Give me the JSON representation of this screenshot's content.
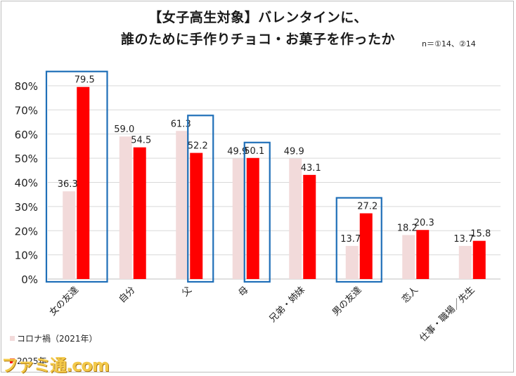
{
  "header": {
    "title_line1": "【女子高生対象】バレンタインに、",
    "title_line2": "誰のために手作りチョコ・お菓子を作ったか",
    "note": "n＝①14、②14"
  },
  "legend": {
    "items": [
      {
        "label": "コロナ禍（2021年）",
        "color": "#f2dada"
      },
      {
        "label": "2025年",
        "color": "#ff0000"
      }
    ]
  },
  "watermark": {
    "text": "ファミ通.com"
  },
  "chart_data": {
    "type": "bar",
    "categories": [
      "女の友達",
      "自分",
      "父",
      "母",
      "兄弟・姉妹",
      "男の友達",
      "恋人",
      "仕事・職場／先生"
    ],
    "series": [
      {
        "name": "コロナ禍（2021年）",
        "color": "#f2dada",
        "values": [
          36.3,
          59.0,
          61.3,
          49.9,
          49.9,
          13.7,
          18.2,
          13.7
        ]
      },
      {
        "name": "2025年",
        "color": "#ff0000",
        "values": [
          79.5,
          54.5,
          52.2,
          50.1,
          43.1,
          27.2,
          20.3,
          15.8
        ]
      }
    ],
    "value_labels": [
      [
        "36.3",
        "59.0",
        "61.3",
        "49.9",
        "49.9",
        "13.7",
        "18.2",
        "13.7"
      ],
      [
        "79.5",
        "54.5",
        "52.2",
        "50.1",
        "43.1",
        "27.2",
        "20.3",
        "15.8"
      ]
    ],
    "y_ticks": [
      "0%",
      "10%",
      "20%",
      "30%",
      "40%",
      "50%",
      "60%",
      "70%",
      "80%"
    ],
    "ylim": [
      0,
      80
    ],
    "highlighted_categories": [
      0,
      2,
      3,
      5
    ],
    "highlight_color": "#1f6fb8",
    "grid": true,
    "legend_position": "bottom-left"
  }
}
